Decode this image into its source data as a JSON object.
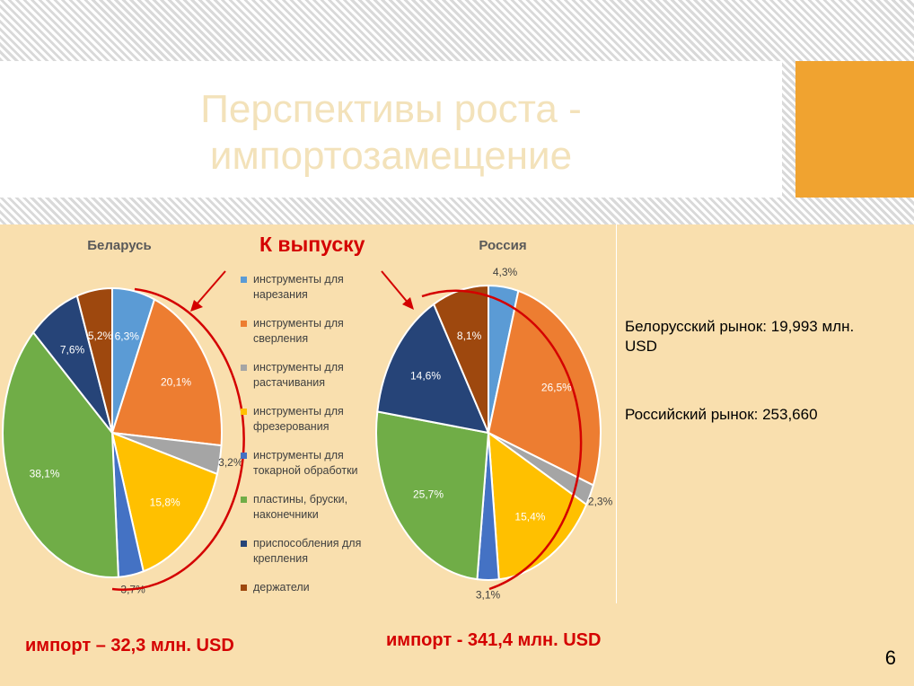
{
  "slide": {
    "title_line1": "Перспективы роста -",
    "title_line2": "импортозамещение",
    "page_number": "6",
    "colors": {
      "accent": "#f0a330",
      "content_bg": "#f9dfae",
      "red": "#d40000"
    }
  },
  "callout": "К выпуску",
  "notes": {
    "belarus_market": "Белорусский рынок: 19,993 млн. USD",
    "russia_market": "Российский рынок: 253,660"
  },
  "imports": {
    "belarus": "импорт – 32,3 млн. USD",
    "russia": "импорт - 341,4 млн. USD"
  },
  "legend": [
    {
      "label": "инструменты для нарезания",
      "color": "#5b9bd5"
    },
    {
      "label": "инструменты для сверления",
      "color": "#ed7d31"
    },
    {
      "label": "инструменты для растачивания",
      "color": "#a5a5a5"
    },
    {
      "label": "инструменты для фрезерования",
      "color": "#ffc000"
    },
    {
      "label": "инструменты для токарной обработки",
      "color": "#4472c4"
    },
    {
      "label": "пластины, бруски, наконечники",
      "color": "#70ad47"
    },
    {
      "label": "приспособления для крепления",
      "color": "#264478"
    },
    {
      "label": "держатели",
      "color": "#9e480e"
    }
  ],
  "chart_data": [
    {
      "type": "pie",
      "title": "Беларусь",
      "categories": [
        "инструменты для нарезания",
        "инструменты для сверления",
        "инструменты для растачивания",
        "инструменты для фрезерования",
        "инструменты для токарной обработки",
        "пластины, бруски, наконечники",
        "приспособления для крепления",
        "держатели"
      ],
      "values": [
        6.3,
        20.1,
        3.2,
        15.8,
        3.7,
        38.1,
        7.6,
        5.2
      ],
      "labels": [
        "6,3%",
        "20,1%",
        "3,2%",
        "15,8%",
        "3,7%",
        "38,1%",
        "7,6%",
        "5,2%"
      ]
    },
    {
      "type": "pie",
      "title": "Россия",
      "categories": [
        "инструменты для нарезания",
        "инструменты для сверления",
        "инструменты для растачивания",
        "инструменты для фрезерования",
        "инструменты для токарной обработки",
        "пластины, бруски, наконечники",
        "приспособления для крепления",
        "держатели"
      ],
      "values": [
        4.3,
        26.5,
        2.3,
        15.4,
        3.1,
        25.7,
        14.6,
        8.1
      ],
      "labels": [
        "4,3%",
        "26,5%",
        "2,3%",
        "15,4%",
        "3,1%",
        "25,7%",
        "14,6%",
        "8,1%"
      ]
    }
  ]
}
